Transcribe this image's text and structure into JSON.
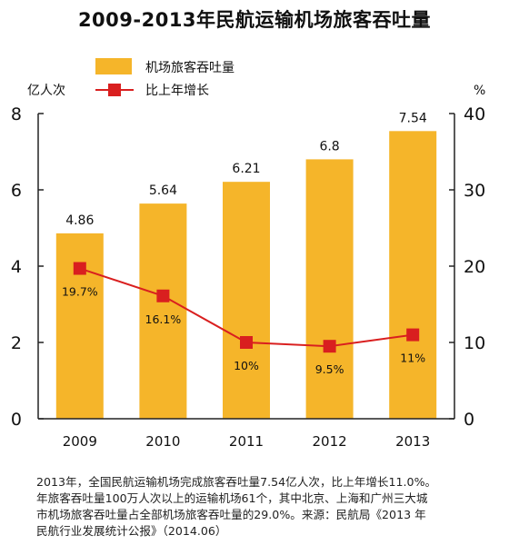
{
  "title": "2009-2013年民航运输机场旅客吞吐量",
  "note_lines": [
    "2013年，全国民航运输机场完成旅客吞吐量7.54亿人次，比上年增长11.0%。",
    "年旅客吞吐量100万人次以上的运输机场61个，其中北京、上海和广州三大城",
    "市机场旅客吞吐量占全部机场旅客吞吐量的29.0%。来源：民航局《2013 年",
    "民航行业发展统计公报》（2014.06）"
  ],
  "colors": {
    "bar": "#F5B52A",
    "line": "#D91F1F",
    "text": "#111111"
  },
  "chart_data": {
    "type": "bar",
    "title": "2009-2013年民航运输机场旅客吞吐量",
    "categories": [
      "2009",
      "2010",
      "2011",
      "2012",
      "2013"
    ],
    "series": [
      {
        "name": "机场旅客吞吐量",
        "type": "bar",
        "axis": "left",
        "values": [
          4.86,
          5.64,
          6.21,
          6.8,
          7.54
        ],
        "labels": [
          "4.86",
          "5.64",
          "6.21",
          "6.8",
          "7.54"
        ]
      },
      {
        "name": "比上年增长",
        "type": "line",
        "axis": "right",
        "values": [
          19.7,
          16.1,
          10,
          9.5,
          11
        ],
        "labels": [
          "19.7%",
          "16.1%",
          "10%",
          "9.5%",
          "11%"
        ]
      }
    ],
    "y_left": {
      "label": "亿人次",
      "min": 0,
      "max": 8,
      "ticks": [
        0,
        2,
        4,
        6,
        8
      ]
    },
    "y_right": {
      "label": "%",
      "min": 0,
      "max": 40,
      "ticks": [
        0,
        10,
        20,
        30,
        40
      ]
    },
    "legend_position": "top-left",
    "grid": false
  }
}
